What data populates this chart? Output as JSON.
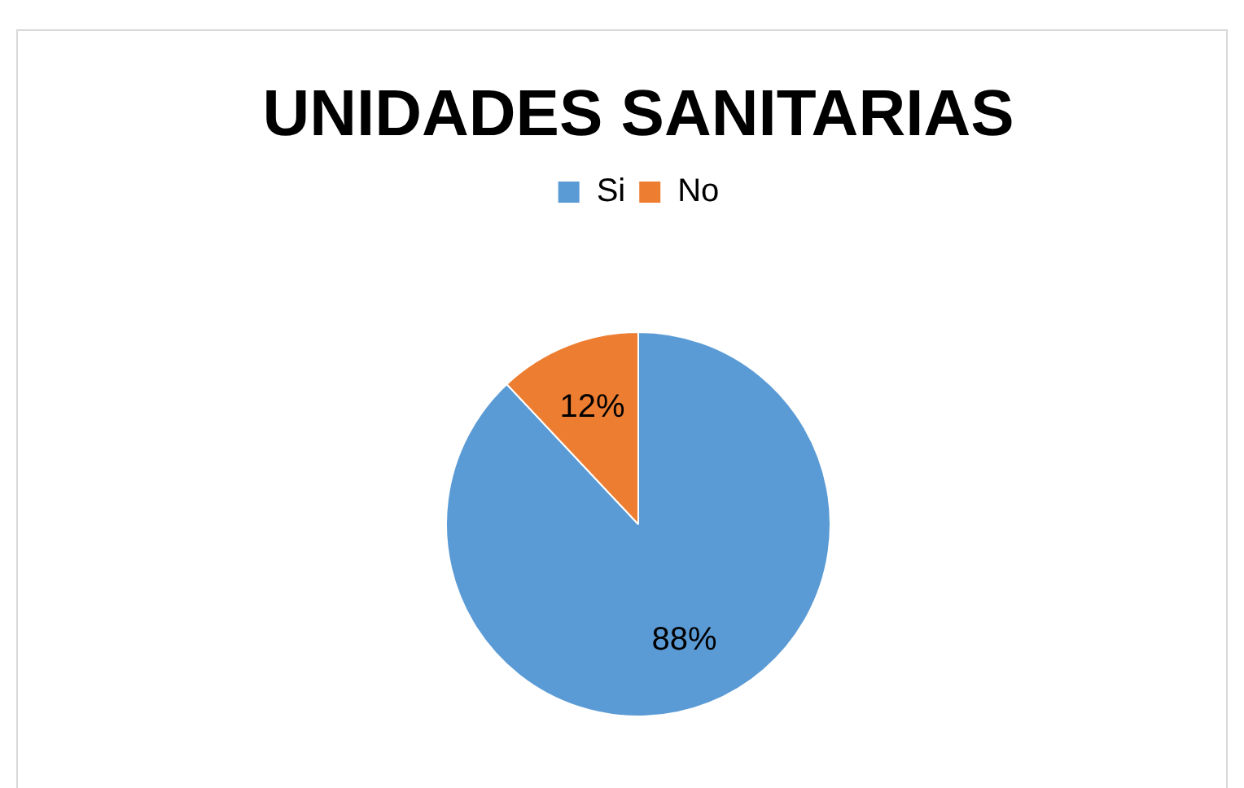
{
  "chart_data": {
    "type": "pie",
    "title": "UNIDADES SANITARIAS",
    "categories": [
      "Si",
      "No"
    ],
    "values": [
      88,
      12
    ],
    "colors": [
      "#5b9bd5",
      "#ed7d31"
    ],
    "value_labels": [
      "88%",
      "12%"
    ],
    "legend": "top"
  }
}
